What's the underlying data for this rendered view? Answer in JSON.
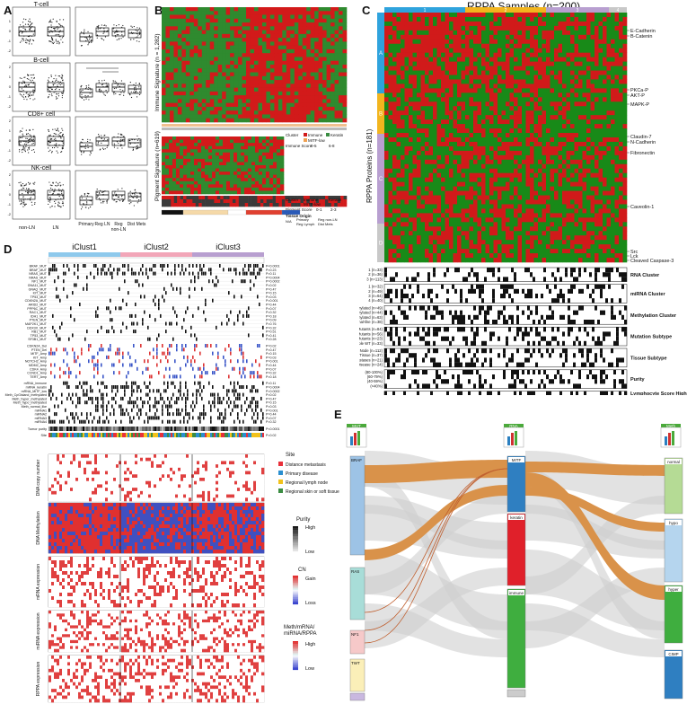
{
  "panelA": {
    "label": "A",
    "rows": [
      {
        "title": "T-cell"
      },
      {
        "title": "B-cell"
      },
      {
        "title": "CD8+ cell"
      },
      {
        "title": "NK-cell"
      }
    ],
    "left_x": [
      "non-LN",
      "LN"
    ],
    "right_x": [
      "Primary",
      "Reg LN",
      "Reg non-LN",
      "Dist Mets"
    ],
    "yticks": [
      "2",
      "1",
      "0",
      "-1",
      "-2"
    ]
  },
  "panelB": {
    "label": "B",
    "top_ylabel": "Immune Signature (n = 1,282)",
    "bottom_ylabel": "Pigment Signature (n=619)",
    "legend1": {
      "cluster": "Cluster",
      "immune": "Immune",
      "keratin": "Keratin",
      "mitf": "MITF-low",
      "score": "Immune Score",
      "s0": "0-5",
      "s1": "6-8"
    },
    "legend2": {
      "cluster": "Cluster",
      "immune": "Immune",
      "keratin": "Keratin",
      "mitf": "MITF-low",
      "pigment": "Pigment Score",
      "p0": "0-1",
      "p1": "2-3",
      "tissue": "Tissue Origin",
      "t_na": "N/A",
      "t_primary": "Primary",
      "t_reglyn": "Reg Lymph",
      "t_regnon": "Reg non-LN",
      "t_dist": "Dist Mets"
    }
  },
  "panelC": {
    "label": "C",
    "title": "RPPA Samples (n=200)",
    "ylabel": "RPPA Proteins (n=181)",
    "top_groups": [
      "1",
      "2",
      "3",
      "4"
    ],
    "side_groups": [
      "A",
      "B",
      "C",
      "D"
    ],
    "proteins": [
      "E-Cadherin",
      "B-Catenin",
      "PKCa-P",
      "AKT-P",
      "MAPK-P",
      "Claudin-7",
      "N-Cadherin",
      "Fibronectin",
      "Caveolin-1",
      "Src",
      "Lck",
      "Cleaved Caspase-3"
    ],
    "track_rows": [
      "1 (n=33)",
      "2 (n=36)",
      "3 (n=113)",
      "1 (n=32)",
      "2 (n=49)",
      "3 (n=64)",
      "4 (n=40)",
      "Hyper-methylated (n=49)",
      "CpG-island-methylated (n=44)",
      "Hypo-methylated (n=63)",
      "Normal-like (n=38)",
      "BRAF Hotspot Mutants (n=84)",
      "RAS Hotspot Mutants (n=56)",
      "NF1 Any Mutants (n=23)",
      "Triple WT (n=33)",
      "Regional Lymph Node (n=112)",
      "Regional Skin or Soft Tissue (n=37)",
      "Distant Metastases (n=21)",
      "Primary Disease (n=24)",
      "(80-100%)",
      "(60-79%)",
      "(40-59%)",
      "(<40%)"
    ],
    "track_titles": [
      "RNA Cluster",
      "miRNA Cluster",
      "Methylation Cluster",
      "Mutation Subtype",
      "Tissue Subtype",
      "Purity",
      "Lymphocyte Score High"
    ]
  },
  "panelD": {
    "label": "D",
    "clusters": [
      "iClust1",
      "iClust2",
      "iClust3"
    ],
    "mut_rows": [
      "BRAF_MUT",
      "BRAF_MUT",
      "NRAS_MUT",
      "NRAS_MUT",
      "NF1_MUT",
      "GNA11_MUT",
      "GNAQ_MUT",
      "KIT_MUT",
      "TP53_MUT",
      "CDKN2A_MUT",
      "ARID2_MUT",
      "PPP6C_MUT",
      "RAC1_MUT",
      "IDH1_MUT",
      "PTEN_MUT",
      "MAP2K1_MUT",
      "DDX3X_MUT",
      "RB1_MUT",
      "TP53_MUT",
      "SF3B1_MUT"
    ],
    "cna_rows": [
      "CDKN2A_Del",
      "PTEN_Del",
      "MITF_Amp",
      "KIT_Amp",
      "NOTCH2_Amp",
      "MDM2_Amp",
      "CDK4_Amp",
      "CCND1_Amp",
      "TERT_Amp"
    ],
    "clust_rows": [
      "mRNA_immune",
      "mRNA_keratin",
      "mRNA_MITF_low",
      "Meth_CpGisland_methylated",
      "Meth_hyper_methylated",
      "Meth_hypo_methylated",
      "Meth_normal_like",
      "miRNA1",
      "miRNA2",
      "miRNA3",
      "miRNA4"
    ],
    "pvals": [
      "P<0.0001",
      "P=0.23",
      "P=0.11",
      "P=0.0004",
      "P=0.0002",
      "P=0.02",
      "P=0.47",
      "P=0.15",
      "P=0.03",
      "P=0.001",
      "P=0.44",
      "P=0.07",
      "P=0.32",
      "P=0.18",
      "P=0.09",
      "P=0.76",
      "P=0.32",
      "P=0.51",
      "P=0.41",
      "P=0.28"
    ],
    "tumor_purity": "Tumor purity",
    "tumor_purity_p": "P<0.0001",
    "site_label": "Site",
    "site_p": "P=0.02",
    "heat_labels": [
      "DNA copy number",
      "DNA Methylation",
      "mRNA expression",
      "miRNA expression",
      "RPPA expression"
    ],
    "legend_site": {
      "title": "Site",
      "items": [
        "Distance metastasis",
        "Primary disease",
        "Regional lymph node",
        "Regional skin or soft tissue"
      ],
      "colors": [
        "#e8303a",
        "#2a8fd0",
        "#f2c21c",
        "#3b8d42"
      ]
    },
    "legend_purity": {
      "title": "Purity",
      "high": "High",
      "low": "Low"
    },
    "legend_cn": {
      "title": "CN",
      "gain": "Gain",
      "loss": "Loss"
    },
    "legend_expr": {
      "title": "Meth/mRNA/ miRNA/RPPA",
      "high": "High",
      "low": "Low"
    }
  },
  "panelE": {
    "label": "E",
    "col_headers": [
      "MUT",
      "RNA",
      "Meth"
    ],
    "left_nodes": [
      "BRAF",
      "RAS",
      "NF1",
      "TWT"
    ],
    "mid_nodes": [
      "MITF",
      "keratin",
      "immune"
    ],
    "right_nodes": [
      "normal",
      "hypo",
      "hyper",
      "CIMP"
    ]
  }
}
